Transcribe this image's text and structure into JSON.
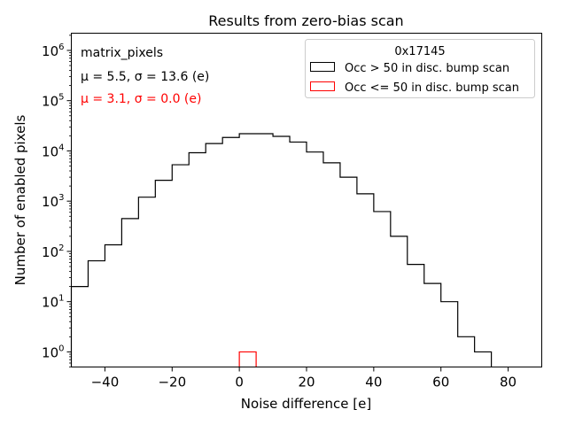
{
  "chart_data": {
    "type": "histogram",
    "title": "Results from zero-bias scan",
    "xlabel": "Noise difference [e]",
    "ylabel": "Number of enabled pixels",
    "xlim": [
      -50,
      90
    ],
    "ylim": [
      0.5,
      2200000
    ],
    "yscale": "log",
    "grid": false,
    "xticks": [
      -40,
      -20,
      0,
      20,
      40,
      60,
      80
    ],
    "xtick_labels": [
      "−40",
      "−20",
      "0",
      "20",
      "40",
      "60",
      "80"
    ],
    "ytick_exponents": [
      0,
      1,
      2,
      3,
      4,
      5,
      6
    ],
    "annotations": [
      {
        "text": "matrix_pixels",
        "color": "#000000"
      },
      {
        "text": "μ = 5.5, σ = 13.6 (e)",
        "color": "#000000"
      },
      {
        "text": "μ = 3.1, σ = 0.0 (e)",
        "color": "#ff0000"
      }
    ],
    "legend": {
      "title": "0x17145",
      "position": "top-right",
      "entries": [
        {
          "label": "Occ > 50 in disc. bump scan",
          "color": "#000000"
        },
        {
          "label": "Occ <= 50 in disc. bump scan",
          "color": "#ff0000"
        }
      ]
    },
    "series": [
      {
        "name": "Occ > 50 in disc. bump scan",
        "color": "#000000",
        "bin_edges": [
          -50,
          -45,
          -40,
          -35,
          -30,
          -25,
          -20,
          -15,
          -10,
          -5,
          0,
          5,
          10,
          15,
          20,
          25,
          30,
          35,
          40,
          45,
          50,
          55,
          60,
          65,
          70,
          75
        ],
        "counts": [
          20,
          65,
          135,
          450,
          1200,
          2600,
          5300,
          9200,
          14000,
          18500,
          22000,
          22000,
          19500,
          15000,
          9500,
          5800,
          3000,
          1400,
          620,
          200,
          55,
          23,
          10,
          2,
          1
        ]
      },
      {
        "name": "Occ <= 50 in disc. bump scan",
        "color": "#ff0000",
        "bin_edges": [
          0,
          5
        ],
        "counts": [
          1
        ]
      }
    ]
  }
}
